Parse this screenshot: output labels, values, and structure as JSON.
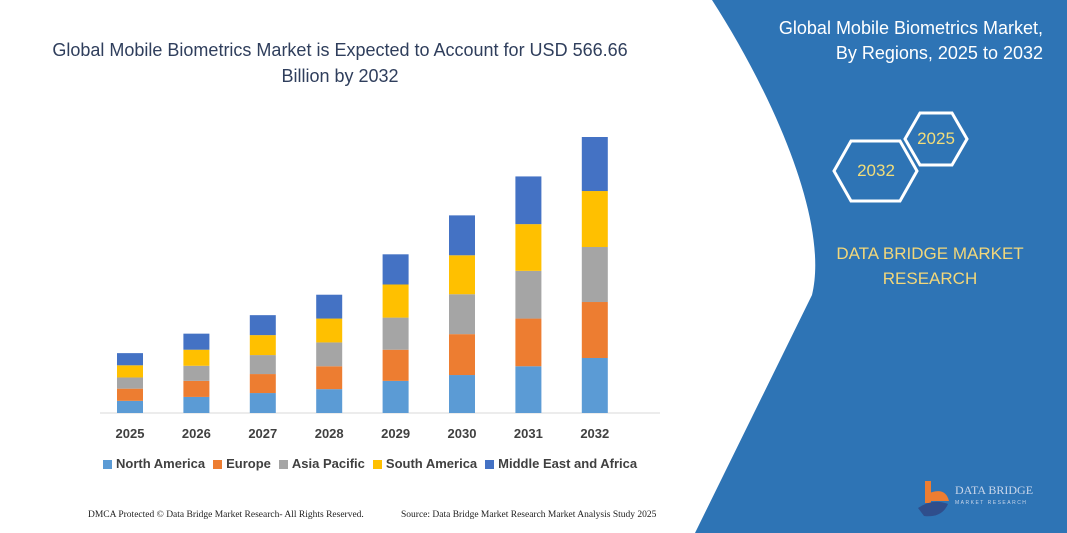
{
  "title": "Global Mobile Biometrics Market is Expected to Account for USD 566.66 Billion by 2032",
  "panel": {
    "title_line1": "Global Mobile Biometrics Market,",
    "title_line2": "By Regions, 2025 to 2032",
    "hex_start": "2025",
    "hex_end": "2032",
    "brand_line1": "DATA BRIDGE MARKET",
    "brand_line2": "RESEARCH",
    "logo_text": "DATA BRIDGE",
    "logo_subtext": "MARKET RESEARCH",
    "panel_color": "#2E74B5"
  },
  "footer": {
    "copyright": "DMCA Protected © Data Bridge Market Research- All Rights Reserved.",
    "source": "Source: Data Bridge Market Research Market Analysis Study 2025"
  },
  "chart_data": {
    "type": "bar",
    "stacked": true,
    "title": "Global Mobile Biometrics Market is Expected to Account for USD 566.66 Billion by 2032",
    "xlabel": "",
    "ylabel": "",
    "y_axis_visible": false,
    "grid": false,
    "legend_position": "bottom",
    "ylim": [
      0,
      580
    ],
    "categories": [
      "2025",
      "2026",
      "2027",
      "2028",
      "2029",
      "2030",
      "2031",
      "2032"
    ],
    "series": [
      {
        "name": "North America",
        "color": "#5B9BD5",
        "values": [
          25,
          33,
          41,
          49,
          66,
          78,
          96,
          113
        ]
      },
      {
        "name": "Europe",
        "color": "#ED7D31",
        "values": [
          25,
          33,
          39,
          47,
          64,
          84,
          98,
          115
        ]
      },
      {
        "name": "Asia Pacific",
        "color": "#A5A5A5",
        "values": [
          23,
          31,
          39,
          49,
          66,
          82,
          98,
          113
        ]
      },
      {
        "name": "South America",
        "color": "#FFC000",
        "values": [
          25,
          33,
          41,
          49,
          68,
          80,
          96,
          115
        ]
      },
      {
        "name": "Middle East and Africa",
        "color": "#4472C4",
        "values": [
          25,
          33,
          41,
          49,
          62,
          82,
          98,
          111
        ]
      }
    ]
  }
}
